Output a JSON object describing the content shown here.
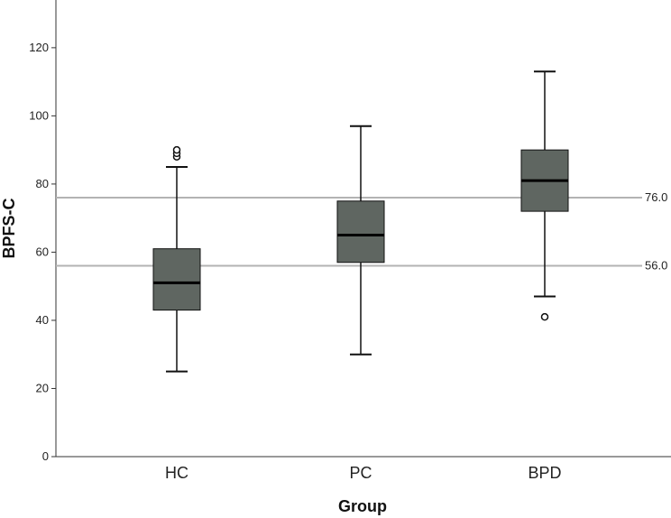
{
  "chart_data": {
    "type": "box",
    "title": "",
    "xlabel": "Group",
    "ylabel": "BPFS-C",
    "ylim": [
      0,
      134
    ],
    "y_ticks": [
      0,
      20,
      40,
      60,
      80,
      100,
      120
    ],
    "categories": [
      "HC",
      "PC",
      "BPD"
    ],
    "boxes": [
      {
        "category": "HC",
        "whisker_low": 25,
        "q1": 43,
        "median": 51,
        "q3": 61,
        "whisker_high": 85,
        "outliers": [
          88,
          89,
          90
        ]
      },
      {
        "category": "PC",
        "whisker_low": 30,
        "q1": 57,
        "median": 65,
        "q3": 75,
        "whisker_high": 97,
        "outliers": []
      },
      {
        "category": "BPD",
        "whisker_low": 47,
        "q1": 72,
        "median": 81,
        "q3": 90,
        "whisker_high": 113,
        "outliers": [
          41
        ]
      }
    ],
    "reference_lines": [
      {
        "value": 76,
        "label": "76.0"
      },
      {
        "value": 56,
        "label": "56.0"
      }
    ],
    "grid": false,
    "legend": "none",
    "colors": {
      "box_fill": "#5f6661",
      "box_stroke": "#111111",
      "median": "#000000",
      "reference_line": "#b3b3b3",
      "axis": "#333333"
    }
  }
}
